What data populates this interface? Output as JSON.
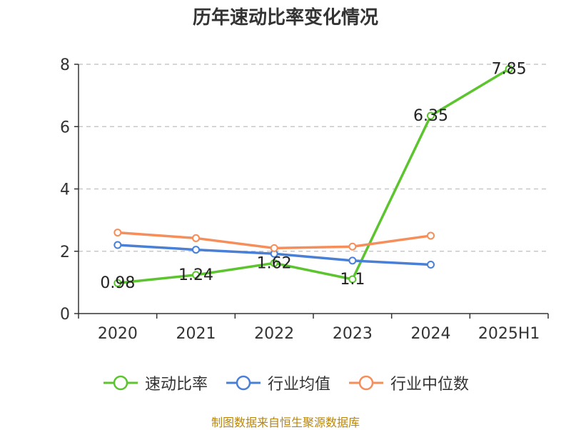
{
  "chart_data": {
    "type": "line",
    "title": "历年速动比率变化情况",
    "categories": [
      "2020",
      "2021",
      "2022",
      "2023",
      "2024",
      "2025H1"
    ],
    "ylim": [
      0,
      8
    ],
    "yticks": [
      "0",
      "2",
      "4",
      "6",
      "8"
    ],
    "grid": true,
    "legend_position": "bottom",
    "series": [
      {
        "name": "速动比率",
        "color": "#5cc42e",
        "values": [
          0.98,
          1.24,
          1.62,
          1.1,
          6.35,
          7.85
        ],
        "labels": [
          "0.98",
          "1.24",
          "1.62",
          "1.1",
          "6.35",
          "7.85"
        ]
      },
      {
        "name": "行业均值",
        "color": "#4a7fd6",
        "values": [
          2.2,
          2.05,
          1.92,
          1.7,
          1.57,
          null
        ],
        "labels": []
      },
      {
        "name": "行业中位数",
        "color": "#f58e5a",
        "values": [
          2.6,
          2.42,
          2.1,
          2.15,
          2.5,
          null
        ],
        "labels": []
      }
    ]
  },
  "footer": {
    "source": "制图数据来自恒生聚源数据库"
  }
}
